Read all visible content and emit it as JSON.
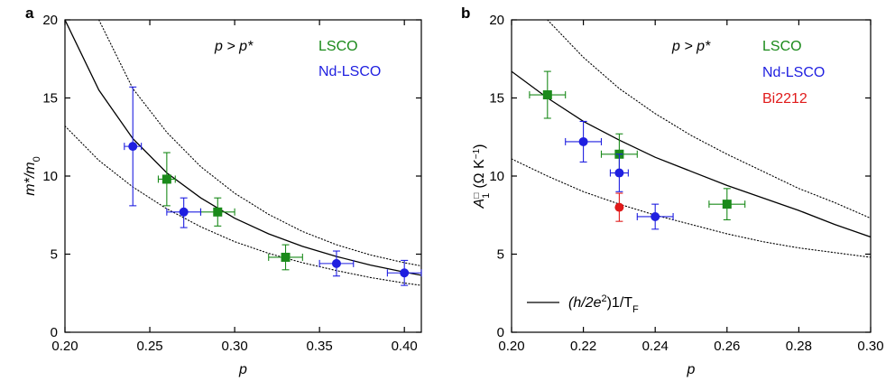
{
  "chart_data": [
    {
      "panel": "a",
      "type": "scatter",
      "xlabel": "p",
      "ylabel_main": "m*/m",
      "ylabel_sub": "0",
      "xlim": [
        0.2,
        0.41
      ],
      "ylim": [
        0,
        20
      ],
      "xticks": [
        "0.20",
        "0.25",
        "0.30",
        "0.35",
        "0.40"
      ],
      "yticks": [
        "0",
        "5",
        "10",
        "15",
        "20"
      ],
      "annotation": "p > p*",
      "legend_placement": "top-right",
      "colors": {
        "LSCO": "#1a8a1a",
        "Nd-LSCO": "#1f1fe0",
        "curve": "#000000"
      },
      "series": [
        {
          "name": "LSCO",
          "marker": "square",
          "points": [
            {
              "x": 0.26,
              "y": 9.8,
              "xerr": 0.005,
              "yerr_low": 1.7,
              "yerr_high": 1.7
            },
            {
              "x": 0.29,
              "y": 7.7,
              "xerr": 0.01,
              "yerr_low": 0.9,
              "yerr_high": 0.9
            },
            {
              "x": 0.33,
              "y": 4.8,
              "xerr": 0.01,
              "yerr_low": 0.8,
              "yerr_high": 0.8
            }
          ]
        },
        {
          "name": "Nd-LSCO",
          "marker": "circle",
          "points": [
            {
              "x": 0.24,
              "y": 11.9,
              "xerr": 0.005,
              "yerr_low": 3.8,
              "yerr_high": 3.8
            },
            {
              "x": 0.27,
              "y": 7.7,
              "xerr": 0.01,
              "yerr_low": 1.0,
              "yerr_high": 0.9
            },
            {
              "x": 0.36,
              "y": 4.4,
              "xerr": 0.01,
              "yerr_low": 0.8,
              "yerr_high": 0.8
            },
            {
              "x": 0.4,
              "y": 3.8,
              "xerr": 0.01,
              "yerr_low": 0.8,
              "yerr_high": 0.8
            }
          ]
        }
      ],
      "curves": [
        {
          "style": "solid",
          "points": [
            [
              0.2,
              20.0
            ],
            [
              0.22,
              15.5
            ],
            [
              0.24,
              12.4
            ],
            [
              0.26,
              10.2
            ],
            [
              0.28,
              8.6
            ],
            [
              0.3,
              7.3
            ],
            [
              0.32,
              6.3
            ],
            [
              0.34,
              5.5
            ],
            [
              0.36,
              4.85
            ],
            [
              0.38,
              4.3
            ],
            [
              0.4,
              3.85
            ],
            [
              0.41,
              3.65
            ]
          ]
        },
        {
          "style": "dotted",
          "points": [
            [
              0.22,
              20.0
            ],
            [
              0.24,
              15.6
            ],
            [
              0.26,
              12.8
            ],
            [
              0.28,
              10.6
            ],
            [
              0.3,
              8.9
            ],
            [
              0.32,
              7.55
            ],
            [
              0.34,
              6.45
            ],
            [
              0.36,
              5.6
            ],
            [
              0.38,
              4.95
            ],
            [
              0.4,
              4.45
            ],
            [
              0.41,
              4.25
            ]
          ]
        },
        {
          "style": "dotted",
          "points": [
            [
              0.2,
              13.2
            ],
            [
              0.22,
              11.0
            ],
            [
              0.24,
              9.3
            ],
            [
              0.26,
              7.9
            ],
            [
              0.28,
              6.75
            ],
            [
              0.3,
              5.8
            ],
            [
              0.32,
              5.05
            ],
            [
              0.34,
              4.45
            ],
            [
              0.36,
              3.95
            ],
            [
              0.38,
              3.5
            ],
            [
              0.4,
              3.15
            ],
            [
              0.41,
              3.0
            ]
          ]
        }
      ]
    },
    {
      "panel": "b",
      "type": "scatter",
      "xlabel": "p",
      "ylabel_main": "A",
      "ylabel_sub": "1",
      "ylabel_sup": "□",
      "ylabel_unit": "(Ω K",
      "ylabel_unit_sup": "−1",
      "ylabel_close": ")",
      "xlim": [
        0.2,
        0.3
      ],
      "ylim": [
        0,
        20
      ],
      "xticks": [
        "0.20",
        "0.22",
        "0.24",
        "0.26",
        "0.28",
        "0.30"
      ],
      "yticks": [
        "0",
        "5",
        "10",
        "15",
        "20"
      ],
      "annotation": "p > p*",
      "legend_placement": "top-right",
      "curve_legend": {
        "open": "(h/2e",
        "sup": "2",
        "mid": ")1/T",
        "sub": "F"
      },
      "colors": {
        "LSCO": "#1a8a1a",
        "Nd-LSCO": "#1f1fe0",
        "Bi2212": "#e01a1a",
        "curve": "#000000"
      },
      "series": [
        {
          "name": "LSCO",
          "marker": "square",
          "points": [
            {
              "x": 0.21,
              "y": 15.2,
              "xerr": 0.005,
              "yerr_low": 1.5,
              "yerr_high": 1.5
            },
            {
              "x": 0.23,
              "y": 11.4,
              "xerr": 0.005,
              "yerr_low": 1.3,
              "yerr_high": 1.3
            },
            {
              "x": 0.26,
              "y": 8.2,
              "xerr": 0.005,
              "yerr_low": 1.0,
              "yerr_high": 1.0
            }
          ]
        },
        {
          "name": "Nd-LSCO",
          "marker": "circle",
          "points": [
            {
              "x": 0.22,
              "y": 12.2,
              "xerr": 0.005,
              "yerr_low": 1.3,
              "yerr_high": 1.3
            },
            {
              "x": 0.23,
              "y": 10.2,
              "xerr": 0.0025,
              "yerr_low": 1.2,
              "yerr_high": 1.2
            },
            {
              "x": 0.24,
              "y": 7.4,
              "xerr": 0.005,
              "yerr_low": 0.8,
              "yerr_high": 0.8
            }
          ]
        },
        {
          "name": "Bi2212",
          "marker": "circle",
          "points": [
            {
              "x": 0.23,
              "y": 8.0,
              "xerr": 0.0,
              "yerr_low": 0.9,
              "yerr_high": 0.9
            }
          ]
        }
      ],
      "curves": [
        {
          "style": "solid",
          "points": [
            [
              0.2,
              16.7
            ],
            [
              0.21,
              15.0
            ],
            [
              0.22,
              13.5
            ],
            [
              0.23,
              12.3
            ],
            [
              0.24,
              11.2
            ],
            [
              0.25,
              10.3
            ],
            [
              0.26,
              9.4
            ],
            [
              0.27,
              8.6
            ],
            [
              0.28,
              7.8
            ],
            [
              0.29,
              6.9
            ],
            [
              0.3,
              6.1
            ]
          ]
        },
        {
          "style": "dotted",
          "points": [
            [
              0.21,
              20.0
            ],
            [
              0.22,
              17.6
            ],
            [
              0.23,
              15.6
            ],
            [
              0.24,
              14.0
            ],
            [
              0.25,
              12.6
            ],
            [
              0.26,
              11.4
            ],
            [
              0.27,
              10.3
            ],
            [
              0.28,
              9.2
            ],
            [
              0.29,
              8.3
            ],
            [
              0.3,
              7.3
            ]
          ]
        },
        {
          "style": "dotted",
          "points": [
            [
              0.2,
              11.1
            ],
            [
              0.21,
              10.0
            ],
            [
              0.22,
              9.0
            ],
            [
              0.23,
              8.2
            ],
            [
              0.24,
              7.5
            ],
            [
              0.25,
              6.9
            ],
            [
              0.26,
              6.3
            ],
            [
              0.27,
              5.8
            ],
            [
              0.28,
              5.4
            ],
            [
              0.29,
              5.1
            ],
            [
              0.3,
              4.8
            ]
          ]
        }
      ]
    }
  ]
}
